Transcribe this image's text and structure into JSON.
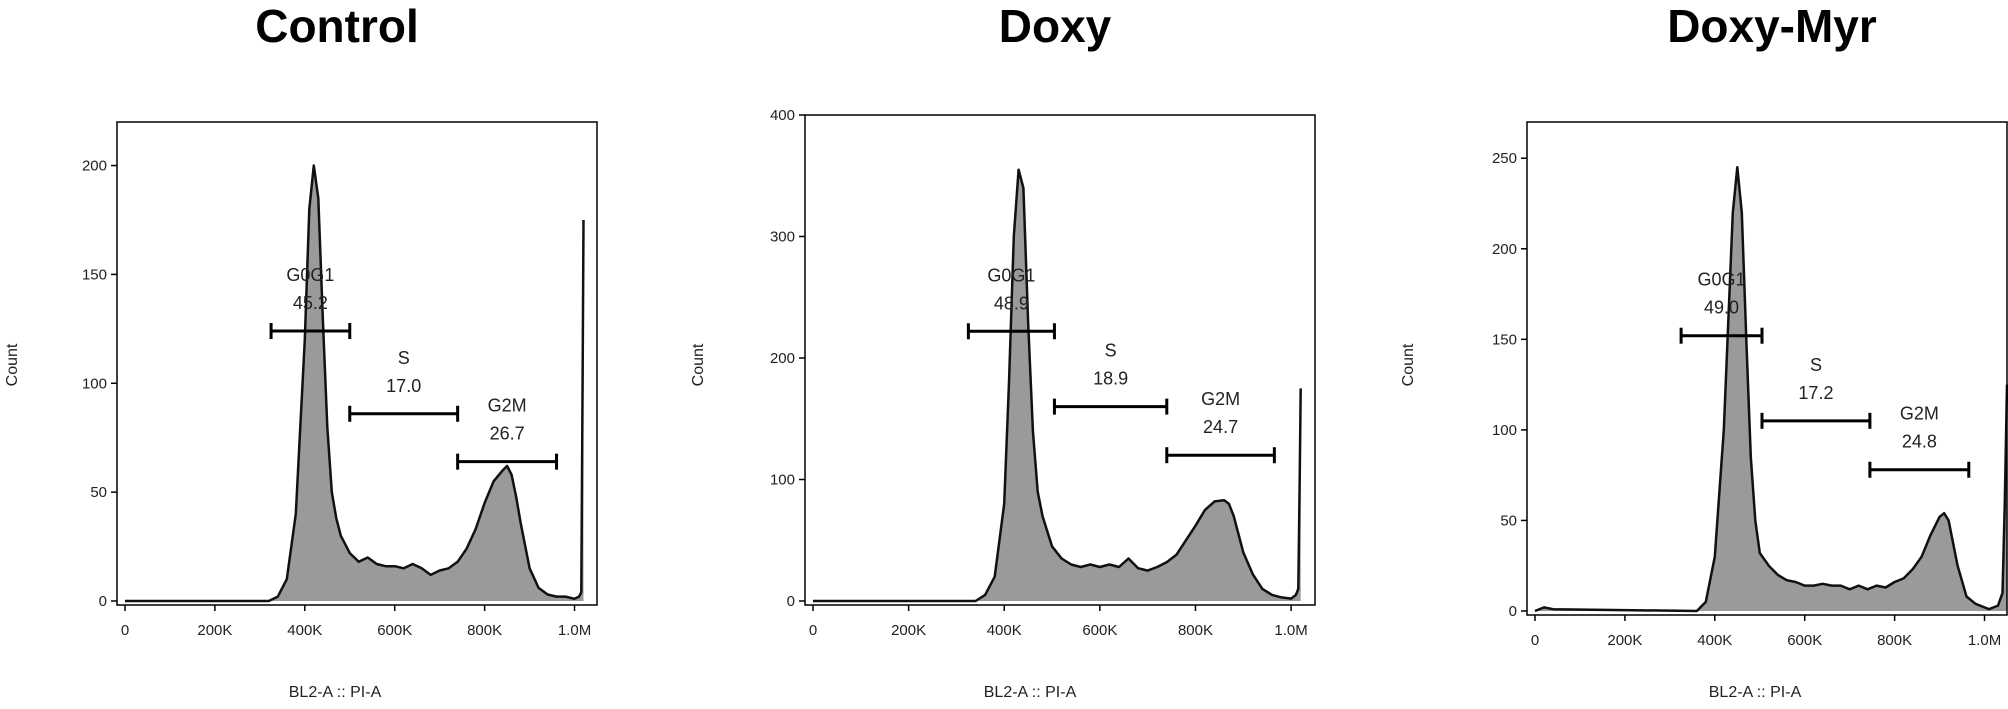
{
  "colors": {
    "fill": "#9a9a9a",
    "line": "#111111",
    "frame": "#000000",
    "background": "#ffffff"
  },
  "chart_data": [
    {
      "type": "area",
      "title": "Control",
      "xlabel": "BL2-A :: PI-A",
      "ylabel": "Count",
      "xlim": [
        0,
        1050000
      ],
      "ylim": [
        0,
        220
      ],
      "xticks": [
        0,
        200000,
        400000,
        600000,
        800000,
        1000000
      ],
      "xtick_labels": [
        "0",
        "200K",
        "400K",
        "600K",
        "800K",
        "1.0M"
      ],
      "yticks": [
        0,
        50,
        100,
        150,
        200
      ],
      "ytick_labels": [
        "0",
        "50",
        "100",
        "150",
        "200"
      ],
      "series": [
        {
          "x": [
            0,
            320000,
            340000,
            360000,
            380000,
            400000,
            410000,
            420000,
            430000,
            440000,
            450000,
            460000,
            470000,
            480000,
            500000,
            520000,
            540000,
            560000,
            580000,
            600000,
            620000,
            640000,
            660000,
            680000,
            700000,
            720000,
            740000,
            760000,
            780000,
            800000,
            820000,
            840000,
            850000,
            860000,
            870000,
            880000,
            900000,
            920000,
            940000,
            960000,
            980000,
            1000000,
            1010000,
            1015000,
            1018000,
            1020000
          ],
          "y": [
            0,
            0,
            2,
            10,
            40,
            120,
            180,
            200,
            185,
            130,
            80,
            50,
            38,
            30,
            22,
            18,
            20,
            17,
            16,
            16,
            15,
            17,
            15,
            12,
            14,
            15,
            18,
            24,
            33,
            45,
            55,
            60,
            62,
            58,
            48,
            36,
            15,
            6,
            3,
            2,
            2,
            1,
            2,
            4,
            100,
            175
          ]
        }
      ],
      "gates": [
        {
          "name": "G0G1",
          "value": "45.2",
          "x0": 325000,
          "x1": 500000,
          "y": 124
        },
        {
          "name": "S",
          "value": "17.0",
          "x0": 500000,
          "x1": 740000,
          "y": 86
        },
        {
          "name": "G2M",
          "value": "26.7",
          "x0": 740000,
          "x1": 960000,
          "y": 64
        }
      ]
    },
    {
      "type": "area",
      "title": "Doxy",
      "xlabel": "BL2-A :: PI-A",
      "ylabel": "Count",
      "xlim": [
        0,
        1050000
      ],
      "ylim": [
        0,
        400
      ],
      "xticks": [
        0,
        200000,
        400000,
        600000,
        800000,
        1000000
      ],
      "xtick_labels": [
        "0",
        "200K",
        "400K",
        "600K",
        "800K",
        "1.0M"
      ],
      "yticks": [
        0,
        100,
        200,
        300,
        400
      ],
      "ytick_labels": [
        "0",
        "100",
        "200",
        "300",
        "400"
      ],
      "series": [
        {
          "x": [
            0,
            340000,
            360000,
            380000,
            400000,
            410000,
            420000,
            430000,
            440000,
            450000,
            460000,
            470000,
            480000,
            500000,
            520000,
            540000,
            560000,
            580000,
            600000,
            620000,
            640000,
            660000,
            680000,
            700000,
            720000,
            740000,
            760000,
            780000,
            800000,
            820000,
            840000,
            860000,
            870000,
            880000,
            890000,
            900000,
            920000,
            940000,
            960000,
            980000,
            1000000,
            1010000,
            1015000,
            1018000,
            1020000
          ],
          "y": [
            0,
            0,
            5,
            20,
            80,
            180,
            300,
            355,
            340,
            230,
            140,
            90,
            70,
            45,
            35,
            30,
            28,
            30,
            28,
            30,
            28,
            35,
            27,
            25,
            28,
            32,
            38,
            50,
            62,
            75,
            82,
            83,
            80,
            70,
            55,
            40,
            22,
            10,
            5,
            3,
            2,
            5,
            10,
            100,
            175
          ]
        }
      ],
      "gates": [
        {
          "name": "G0G1",
          "value": "48.9",
          "x0": 325000,
          "x1": 505000,
          "y": 222
        },
        {
          "name": "S",
          "value": "18.9",
          "x0": 505000,
          "x1": 740000,
          "y": 160
        },
        {
          "name": "G2M",
          "value": "24.7",
          "x0": 740000,
          "x1": 965000,
          "y": 120
        }
      ]
    },
    {
      "type": "area",
      "title": "Doxy-Myr",
      "xlabel": "BL2-A :: PI-A",
      "ylabel": "Count",
      "xlim": [
        0,
        1050000
      ],
      "ylim": [
        0,
        270
      ],
      "xticks": [
        0,
        200000,
        400000,
        600000,
        800000,
        1000000
      ],
      "xtick_labels": [
        "0",
        "200K",
        "400K",
        "600K",
        "800K",
        "1.0M"
      ],
      "yticks": [
        0,
        50,
        100,
        150,
        200,
        250
      ],
      "ytick_labels": [
        "0",
        "50",
        "100",
        "150",
        "200",
        "250"
      ],
      "series": [
        {
          "x": [
            0,
            20000,
            40000,
            360000,
            380000,
            400000,
            420000,
            430000,
            440000,
            450000,
            460000,
            470000,
            480000,
            490000,
            500000,
            520000,
            540000,
            560000,
            580000,
            600000,
            620000,
            640000,
            660000,
            680000,
            700000,
            720000,
            740000,
            760000,
            780000,
            800000,
            820000,
            840000,
            860000,
            880000,
            900000,
            910000,
            920000,
            940000,
            960000,
            980000,
            1000000,
            1010000,
            1020000,
            1030000,
            1040000,
            1045000,
            1050000
          ],
          "y": [
            0,
            2,
            1,
            0,
            5,
            30,
            100,
            160,
            220,
            245,
            220,
            150,
            85,
            50,
            32,
            25,
            20,
            17,
            16,
            14,
            14,
            15,
            14,
            14,
            12,
            14,
            12,
            14,
            13,
            16,
            18,
            23,
            30,
            42,
            52,
            54,
            50,
            25,
            8,
            4,
            2,
            1,
            2,
            3,
            10,
            60,
            125
          ]
        }
      ],
      "gates": [
        {
          "name": "G0G1",
          "value": "49.0",
          "x0": 325000,
          "x1": 505000,
          "y": 152
        },
        {
          "name": "S",
          "value": "17.2",
          "x0": 505000,
          "x1": 745000,
          "y": 105
        },
        {
          "name": "G2M",
          "value": "24.8",
          "x0": 745000,
          "x1": 965000,
          "y": 78
        }
      ]
    }
  ]
}
